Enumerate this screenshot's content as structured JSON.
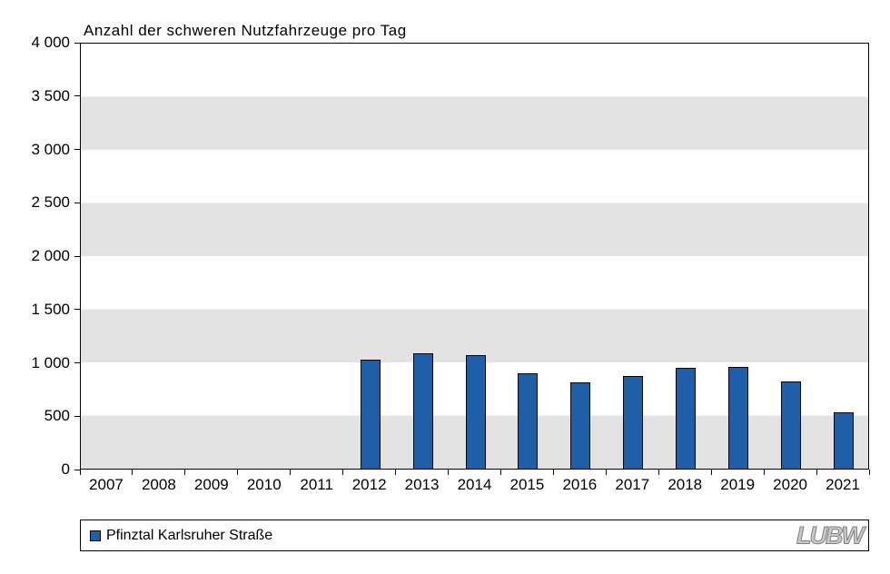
{
  "title": "Anzahl  der schweren Nutzfahrzeuge  pro Tag",
  "chart_data": {
    "type": "bar",
    "title": "Anzahl der schweren Nutzfahrzeuge pro Tag",
    "categories": [
      "2007",
      "2008",
      "2009",
      "2010",
      "2011",
      "2012",
      "2013",
      "2014",
      "2015",
      "2016",
      "2017",
      "2018",
      "2019",
      "2020",
      "2021"
    ],
    "values": [
      null,
      null,
      null,
      null,
      null,
      1030,
      1085,
      1065,
      895,
      810,
      870,
      950,
      960,
      820,
      530
    ],
    "ylim": [
      0,
      4000
    ],
    "ytick_step": 500,
    "yticks": [
      "0",
      "500",
      "1 000",
      "1 500",
      "2 000",
      "2 500",
      "3 000",
      "3 500",
      "4 000"
    ],
    "xlabel": "",
    "ylabel": "",
    "grid": "alternating horizontal bands",
    "legend_position": "bottom",
    "bar_color": "#1f5fa8",
    "band_color": "#e3e3e3"
  },
  "legend": {
    "label": "Pfinztal Karlsruher Straße",
    "swatch_color": "#1f5fa8"
  },
  "logo_text": "LUBW"
}
